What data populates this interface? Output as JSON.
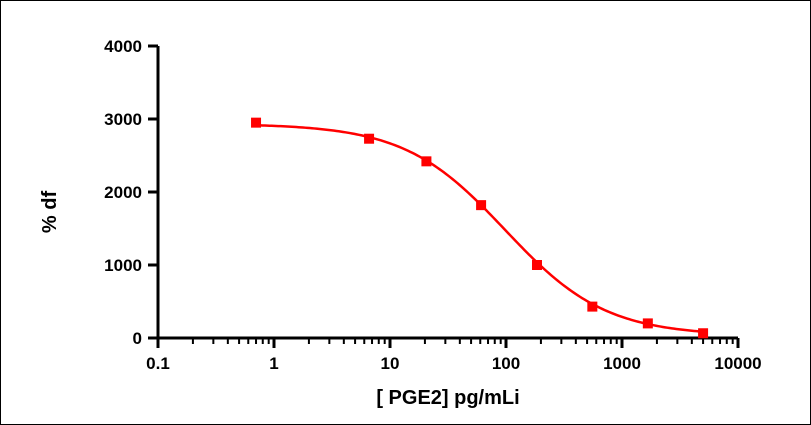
{
  "chart_data": {
    "type": "scatter",
    "xlabel": "[ PGE2] pg/mLi",
    "ylabel": "% df",
    "x_scale": "log",
    "xlim": [
      0.1,
      10000
    ],
    "ylim": [
      0,
      4000
    ],
    "x_ticks": [
      0.1,
      1,
      10,
      100,
      1000,
      10000
    ],
    "x_tick_labels": [
      "0.1",
      "1",
      "10",
      "100",
      "1000",
      "10000"
    ],
    "y_ticks": [
      0,
      1000,
      2000,
      3000,
      4000
    ],
    "y_tick_labels": [
      "0",
      "1000",
      "2000",
      "3000",
      "4000"
    ],
    "grid": false,
    "series": [
      {
        "color": "#ff0000",
        "marker": "square",
        "points": [
          {
            "x": 0.7,
            "y": 2950
          },
          {
            "x": 6.6,
            "y": 2730
          },
          {
            "x": 20.6,
            "y": 2420
          },
          {
            "x": 61,
            "y": 1820
          },
          {
            "x": 185,
            "y": 1000
          },
          {
            "x": 555,
            "y": 430
          },
          {
            "x": 1670,
            "y": 200
          },
          {
            "x": 5000,
            "y": 65
          }
        ],
        "fit": {
          "type": "four-parameter-logistic",
          "top": 2935,
          "bottom": 30,
          "ec50": 98,
          "hill": 1.0
        }
      }
    ]
  }
}
